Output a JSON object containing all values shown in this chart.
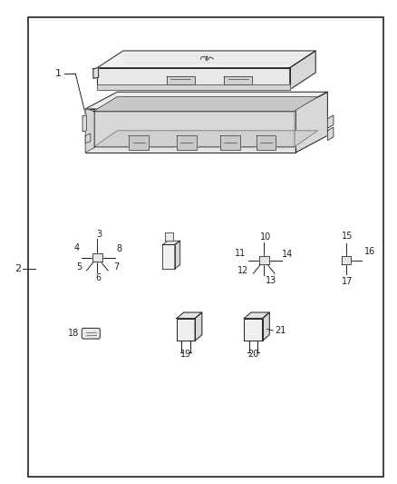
{
  "bg_color": "#ffffff",
  "border_color": "#222222",
  "lc": "#222222",
  "fig_width": 4.38,
  "fig_height": 5.33,
  "border": [
    0.07,
    0.015,
    0.965,
    0.965
  ]
}
